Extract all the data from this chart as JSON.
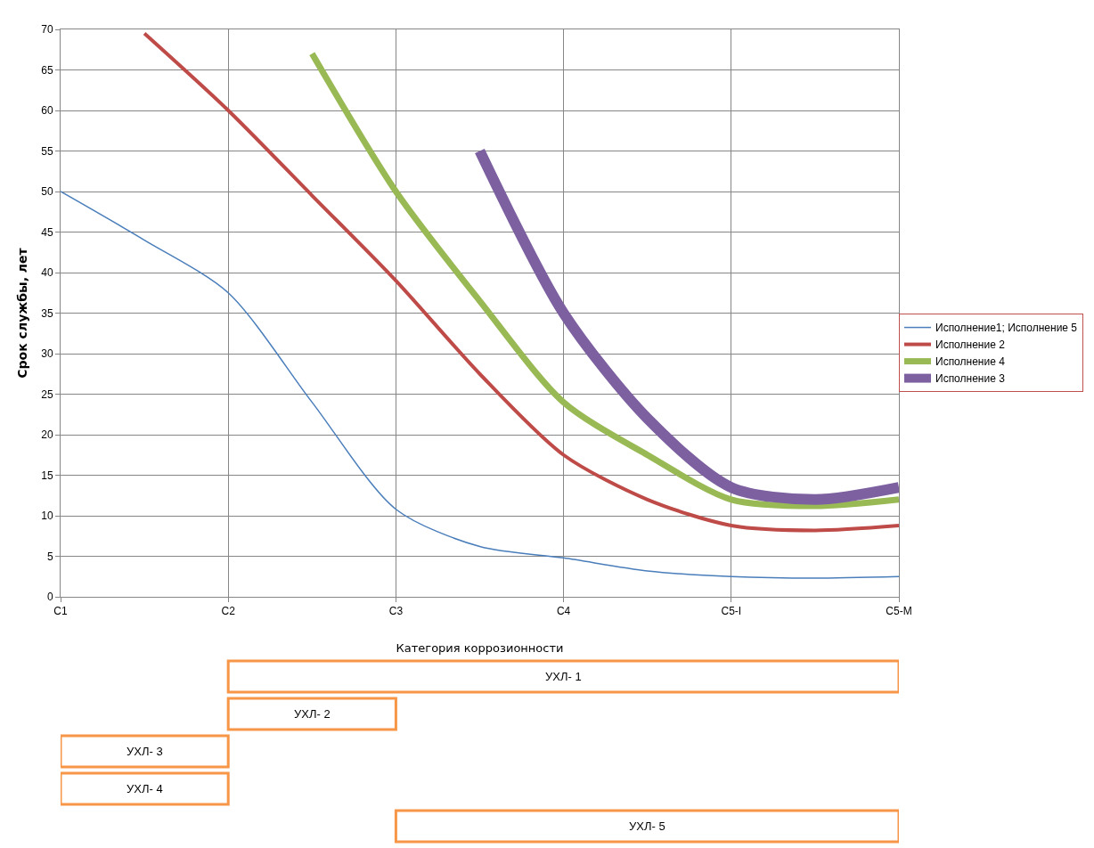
{
  "chart_data": {
    "type": "line",
    "xlabel": "Категория коррозионности",
    "ylabel": "Срок службы, лет",
    "categories": [
      "C1",
      null,
      "C2",
      null,
      "C3",
      null,
      "C4",
      null,
      "C5-I",
      null,
      "C5-M"
    ],
    "ylim": [
      0,
      70
    ],
    "yticks": [
      0,
      5,
      10,
      15,
      20,
      25,
      30,
      35,
      40,
      45,
      50,
      55,
      60,
      65,
      70
    ],
    "grid": true,
    "legend": "right",
    "marker": "none",
    "line_style": "solid",
    "series": [
      {
        "name": "Исполнение1; Исполнение 5",
        "color": "#4a7ebb",
        "values": [
          50,
          44,
          37.5,
          24,
          10.8,
          6.2,
          4.8,
          3.2,
          2.5,
          2.3,
          2.5
        ]
      },
      {
        "name": "Исполнение 2",
        "color": "#be4b48",
        "values": [
          null,
          69.5,
          60,
          49.5,
          39,
          27.5,
          17.5,
          12,
          8.8,
          8.2,
          8.8
        ]
      },
      {
        "name": "Исполнение 4",
        "color": "#98b954",
        "values": [
          null,
          null,
          null,
          67,
          50,
          36.5,
          24,
          17.5,
          12,
          11.2,
          12
        ]
      },
      {
        "name": "Исполнение 3",
        "color": "#7d60a0",
        "values": [
          null,
          null,
          null,
          null,
          null,
          55,
          35,
          22,
          13.5,
          12,
          13.5
        ]
      }
    ],
    "annotations": [
      "УХЛ- 1",
      "УХЛ- 2",
      "УХЛ- 3",
      "УХЛ- 4",
      "УХЛ- 5"
    ]
  }
}
